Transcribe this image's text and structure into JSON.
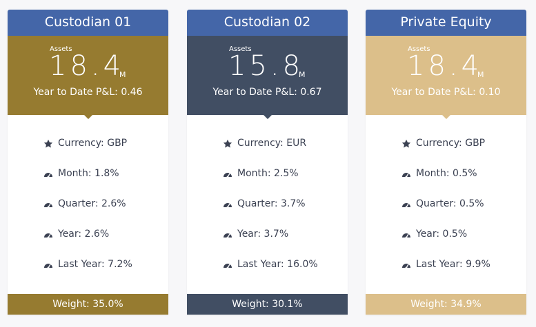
{
  "cards": [
    {
      "title": "Custodian 01",
      "color": "#967b30",
      "assets_label": "Assets",
      "assets_value": "18.4",
      "assets_unit": "M",
      "ytd": "Year to Date P&L: 0.46",
      "currency": "Currency: GBP",
      "month": "Month: 1.8%",
      "quarter": "Quarter: 2.6%",
      "year": "Year: 2.6%",
      "last_year": "Last Year: 7.2%",
      "weight": "Weight: 35.0%"
    },
    {
      "title": "Custodian 02",
      "color": "#414e63",
      "assets_label": "Assets",
      "assets_value": "15.8",
      "assets_unit": "M",
      "ytd": "Year to Date P&L: 0.67",
      "currency": "Currency: EUR",
      "month": "Month: 2.5%",
      "quarter": "Quarter: 3.7%",
      "year": "Year: 3.7%",
      "last_year": "Last Year: 16.0%",
      "weight": "Weight: 30.1%"
    },
    {
      "title": "Private Equity",
      "color": "#dcbf8a",
      "assets_label": "Assets",
      "assets_value": "18.4",
      "assets_unit": "M",
      "ytd": "Year to Date P&L: 0.10",
      "currency": "Currency: GBP",
      "month": "Month: 0.5%",
      "quarter": "Quarter: 0.5%",
      "year": "Year: 0.5%",
      "last_year": "Last Year: 9.9%",
      "weight": "Weight: 34.9%"
    }
  ],
  "icons": {
    "currency": "star-icon",
    "metric": "gauge-icon"
  }
}
